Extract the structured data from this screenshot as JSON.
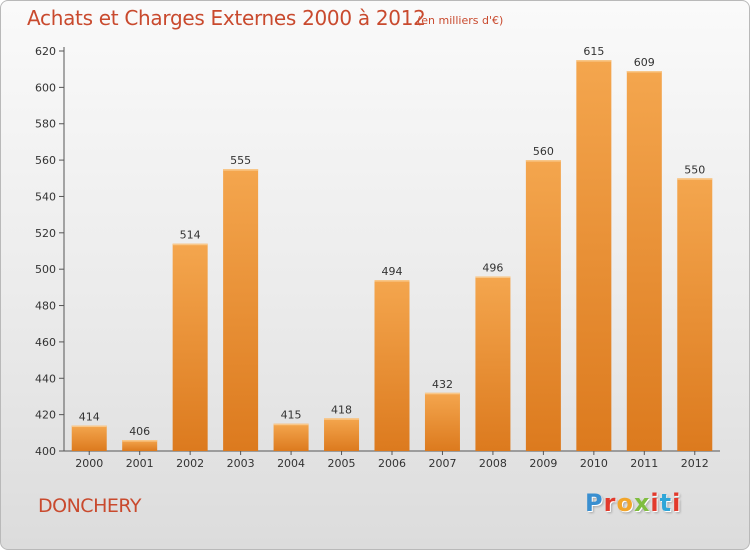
{
  "title": "Achats et Charges Externes 2000 à 2012",
  "unit": "(en milliers d'€)",
  "commune": "DONCHERY",
  "brand": {
    "text": "Proxiti",
    "letter_colors": [
      "#3a8fd0",
      "#e23a2c",
      "#f2a52a",
      "#7fbd3f",
      "#e23a2c",
      "#2fa6d8",
      "#e23a2c"
    ]
  },
  "colors": {
    "bar_top": "#f4a64e",
    "bar_bottom": "#dc7a1e",
    "text_accent": "#c94a2e"
  },
  "chart_data": {
    "type": "bar",
    "categories": [
      "2000",
      "2001",
      "2002",
      "2003",
      "2004",
      "2005",
      "2006",
      "2007",
      "2008",
      "2009",
      "2010",
      "2011",
      "2012"
    ],
    "values": [
      414,
      406,
      514,
      555,
      415,
      418,
      494,
      432,
      496,
      560,
      615,
      609,
      550
    ],
    "ylim": [
      400,
      620
    ],
    "yticks": [
      400,
      420,
      440,
      460,
      480,
      500,
      520,
      540,
      560,
      580,
      600,
      620
    ],
    "grid": false,
    "data_labels": true
  }
}
